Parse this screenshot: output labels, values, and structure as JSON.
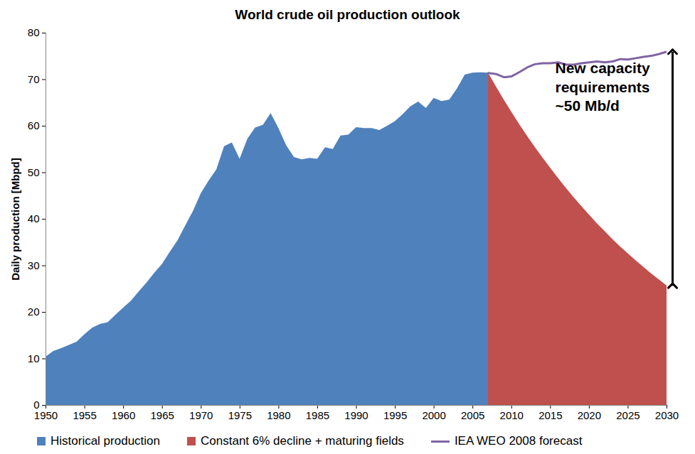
{
  "chart_data": {
    "type": "area",
    "title": "World crude oil production outlook",
    "y_label": "Daily production [Mbpd]",
    "xlim": [
      1950,
      2030
    ],
    "xticks": [
      1950,
      1955,
      1960,
      1965,
      1970,
      1975,
      1980,
      1985,
      1990,
      1995,
      2000,
      2005,
      2010,
      2015,
      2020,
      2025,
      2030
    ],
    "ylim": [
      0,
      80
    ],
    "yticks": [
      0,
      10,
      20,
      30,
      40,
      50,
      60,
      70,
      80
    ],
    "grid": false,
    "legend": "bottom",
    "series": [
      {
        "name": "Historical production",
        "type": "area",
        "color": "#4f81bd",
        "x": [
          1950,
          1951,
          1952,
          1953,
          1954,
          1955,
          1956,
          1957,
          1958,
          1959,
          1960,
          1961,
          1962,
          1963,
          1964,
          1965,
          1966,
          1967,
          1968,
          1969,
          1970,
          1971,
          1972,
          1973,
          1974,
          1975,
          1976,
          1977,
          1978,
          1979,
          1980,
          1981,
          1982,
          1983,
          1984,
          1985,
          1986,
          1987,
          1988,
          1989,
          1990,
          1991,
          1992,
          1993,
          1994,
          1995,
          1996,
          1997,
          1998,
          1999,
          2000,
          2001,
          2002,
          2003,
          2004,
          2005,
          2006,
          2007
        ],
        "values": [
          10.4,
          11.6,
          12.2,
          12.9,
          13.6,
          15.2,
          16.6,
          17.4,
          17.8,
          19.4,
          20.9,
          22.4,
          24.4,
          26.3,
          28.4,
          30.3,
          32.9,
          35.4,
          38.6,
          41.7,
          45.5,
          48.2,
          50.6,
          55.6,
          56.4,
          52.9,
          57.2,
          59.6,
          60.2,
          62.7,
          59.5,
          55.8,
          53.3,
          52.8,
          53.1,
          52.9,
          55.4,
          55.0,
          57.9,
          58.1,
          59.7,
          59.5,
          59.5,
          59.1,
          60.0,
          61.0,
          62.5,
          64.2,
          65.2,
          63.8,
          66.0,
          65.3,
          65.6,
          68.0,
          71.0,
          71.4,
          71.5,
          71.4
        ]
      },
      {
        "name": "Constant 6% decline + maturing fields",
        "type": "area",
        "color": "#c0504d",
        "x": [
          2007,
          2008,
          2009,
          2010,
          2011,
          2012,
          2013,
          2014,
          2015,
          2016,
          2017,
          2018,
          2019,
          2020,
          2021,
          2022,
          2023,
          2024,
          2025,
          2026,
          2027,
          2028,
          2029,
          2030
        ],
        "values": [
          71.4,
          68.5,
          65.7,
          63.0,
          60.4,
          57.9,
          55.5,
          53.2,
          51.0,
          48.8,
          46.7,
          44.7,
          42.8,
          40.9,
          39.1,
          37.4,
          35.7,
          34.1,
          32.6,
          31.1,
          29.7,
          28.3,
          27.0,
          25.7
        ]
      },
      {
        "name": "IEA WEO 2008 forecast",
        "type": "line",
        "color": "#8064a2",
        "x": [
          2007,
          2008,
          2009,
          2010,
          2011,
          2012,
          2013,
          2014,
          2015,
          2016,
          2017,
          2018,
          2019,
          2020,
          2021,
          2022,
          2023,
          2024,
          2025,
          2026,
          2027,
          2028,
          2029,
          2030
        ],
        "values": [
          71.4,
          71.2,
          70.5,
          70.7,
          71.6,
          72.6,
          73.3,
          73.5,
          73.5,
          73.7,
          73.2,
          73.2,
          73.5,
          73.7,
          73.9,
          73.7,
          73.9,
          74.4,
          74.3,
          74.6,
          74.9,
          75.1,
          75.5,
          76.0
        ]
      }
    ],
    "annotations": [
      {
        "lines": [
          "New capacity",
          "requirements",
          "~50 Mb/d"
        ],
        "x": 2030,
        "y_from": 25.7,
        "y_to": 76.0
      }
    ]
  }
}
